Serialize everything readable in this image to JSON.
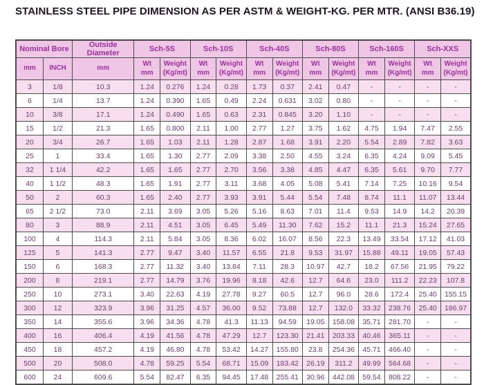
{
  "title": "STAINLESS STEEL PIPE DIMENSION AS PER ASTM & WEIGHT-KG. PER MTR. (ANSI B36.19)",
  "colors": {
    "header-bg": "#efc6e6",
    "row-pink": "#f8dff0",
    "row-white": "#ffffff",
    "header-text": "#993299",
    "data-text": "#693c69",
    "border": "#4a4a4a",
    "title": "#1e1420"
  },
  "table": {
    "group_headers": [
      {
        "label": "Nominal Bore",
        "span": 2
      },
      {
        "label": "Outside Diameter",
        "span": 1
      },
      {
        "label": "Sch-5S",
        "span": 2
      },
      {
        "label": "Sch-10S",
        "span": 2
      },
      {
        "label": "Sch-40S",
        "span": 2
      },
      {
        "label": "Sch-80S",
        "span": 2
      },
      {
        "label": "Sch-160S",
        "span": 2
      },
      {
        "label": "Sch-XXS",
        "span": 2
      }
    ],
    "sub_headers": [
      "mm",
      "INCH",
      "mm",
      "Wt\nmm",
      "Weight\n(Kg/mt)",
      "Wt\nmm",
      "Weight\n(Kg/mt)",
      "Wt\nmm",
      "Weight\n(Kg/mt)",
      "Wt\nmm",
      "Weight\n(Kg/mt)",
      "Wt\nmm",
      "Weight\n(Kg/mt)",
      "Wt\nmm",
      "Weight\n(Kg/mt)"
    ],
    "rows": [
      [
        "3",
        "1/8",
        "10.3",
        "1.24",
        "0.276",
        "1.24",
        "0.28",
        "1.73",
        "0.37",
        "2.41",
        "0.47",
        "-",
        "-",
        "-",
        "-"
      ],
      [
        "6",
        "1/4",
        "13.7",
        "1.24",
        "0.390",
        "1.65",
        "0.49",
        "2.24",
        "0.631",
        "3.02",
        "0.80",
        "-",
        "-",
        "-",
        "-"
      ],
      [
        "10",
        "3/8",
        "17.1",
        "1.24",
        "0.490",
        "1.65",
        "0.63",
        "2.31",
        "0.845",
        "3.20",
        "1.10",
        "-",
        "-",
        "-",
        "-"
      ],
      [
        "15",
        "1/2",
        "21.3",
        "1.65",
        "0.800",
        "2.11",
        "1.00",
        "2.77",
        "1.27",
        "3.75",
        "1.62",
        "4.75",
        "1.94",
        "7.47",
        "2.55"
      ],
      [
        "20",
        "3/4",
        "26.7",
        "1.65",
        "1.03",
        "2.11",
        "1.28",
        "2.87",
        "1.68",
        "3.91",
        "2.20",
        "5.54",
        "2.89",
        "7.82",
        "3.63"
      ],
      [
        "25",
        "1",
        "33.4",
        "1.65",
        "1.30",
        "2.77",
        "2.09",
        "3.38",
        "2.50",
        "4.55",
        "3.24",
        "6.35",
        "4.24",
        "9.09",
        "5.45"
      ],
      [
        "32",
        "1 1/4",
        "42.2",
        "1.65",
        "1.65",
        "2.77",
        "2.70",
        "3.56",
        "3.38",
        "4.85",
        "4.47",
        "6.35",
        "5.61",
        "9.70",
        "7.77"
      ],
      [
        "40",
        "1 1/2",
        "48.3",
        "1.65",
        "1.91",
        "2.77",
        "3.11",
        "3.68",
        "4.05",
        "5.08",
        "5.41",
        "7.14",
        "7.25",
        "10.16",
        "9.54"
      ],
      [
        "50",
        "2",
        "60.3",
        "1.65",
        "2.40",
        "2.77",
        "3.93",
        "3.91",
        "5.44",
        "5.54",
        "7.48",
        "8.74",
        "11.1",
        "11.07",
        "13.44"
      ],
      [
        "65",
        "2 1/2",
        "73.0",
        "2.11",
        "3.69",
        "3.05",
        "5.26",
        "5.16",
        "8.63",
        "7.01",
        "11.4",
        "9.53",
        "14.9",
        "14.2",
        "20.39"
      ],
      [
        "80",
        "3",
        "88.9",
        "2.11",
        "4.51",
        "3.05",
        "6.45",
        "5.49",
        "11.30",
        "7.62",
        "15.2",
        "11.1",
        "21.3",
        "15.24",
        "27.65"
      ],
      [
        "100",
        "4",
        "114.3",
        "2.11",
        "5.84",
        "3.05",
        "8.36",
        "6.02",
        "16.07",
        "8.56",
        "22.3",
        "13.49",
        "33.54",
        "17.12",
        "41.03"
      ],
      [
        "125",
        "5",
        "141.3",
        "2.77",
        "9.47",
        "3.40",
        "11.57",
        "6.55",
        "21.8",
        "9.53",
        "31.97",
        "15.88",
        "49.11",
        "19.05",
        "57.43"
      ],
      [
        "150",
        "6",
        "168.3",
        "2.77",
        "11.32",
        "3.40",
        "13.84",
        "7.11",
        "28.3",
        "10.97",
        "42.7",
        "18.2",
        "67.56",
        "21.95",
        "79.22"
      ],
      [
        "200",
        "8",
        "219.1",
        "2.77",
        "14.79",
        "3.76",
        "19.96",
        "8.18",
        "42.6",
        "12.7",
        "64.6",
        "23.0",
        "111.2",
        "22.23",
        "107.8"
      ],
      [
        "250",
        "10",
        "273.1",
        "3.40",
        "22.63",
        "4.19",
        "27.78",
        "9.27",
        "60.5",
        "12.7",
        "96.0",
        "28.6",
        "172.4",
        "25.40",
        "155.15"
      ],
      [
        "300",
        "12",
        "323.9",
        "3.96",
        "31.25",
        "4.57",
        "36.00",
        "9.52",
        "73.88",
        "12.7",
        "132.0",
        "33.32",
        "238.76",
        "25.40",
        "186.97"
      ],
      [
        "350",
        "14",
        "355.6",
        "3.96",
        "34.36",
        "4.78",
        "41.3",
        "11.13",
        "94.59",
        "19.05",
        "158.08",
        "35.71",
        "281.70",
        "-",
        "-"
      ],
      [
        "400",
        "16",
        "406.4",
        "4.19",
        "41.56",
        "4.78",
        "47.29",
        "12.7",
        "123.30",
        "21.41",
        "203.33",
        "40.46",
        "365.11",
        "-",
        "-"
      ],
      [
        "450",
        "18",
        "457.2",
        "4.19",
        "46.80",
        "4.78",
        "53.42",
        "14.27",
        "155.80",
        "23.8",
        "254.36",
        "45.71",
        "466.40",
        "-",
        "-"
      ],
      [
        "500",
        "20",
        "508.0",
        "4.78",
        "59.25",
        "5.54",
        "68.71",
        "15.09",
        "183.42",
        "26.19",
        "311.2",
        "49.99",
        "564.68",
        "-",
        "-"
      ],
      [
        "600",
        "24",
        "609.6",
        "5.54",
        "82.47",
        "6.35",
        "94.45",
        "17.48",
        "255.41",
        "30.96",
        "442.08",
        "59.54",
        "808.22",
        "-",
        "-"
      ]
    ]
  }
}
